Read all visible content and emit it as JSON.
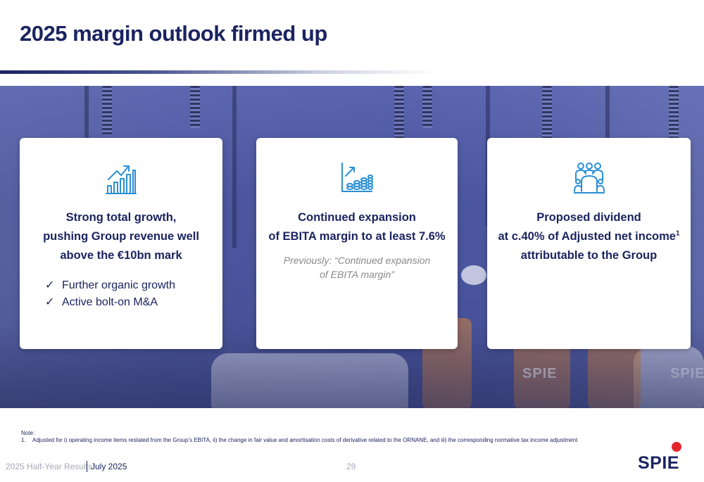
{
  "slide": {
    "title": "2025 margin outlook firmed up"
  },
  "cards": [
    {
      "icon": "growth-chart-icon",
      "heading": "Strong total growth, pushing Group revenue well above the €10bn mark",
      "bullets": [
        "Further organic growth",
        "Active bolt-on M&A"
      ],
      "bullet_marker": "✓"
    },
    {
      "icon": "margin-coins-chart-icon",
      "heading_line1": "Continued expansion",
      "heading_line2": "of EBITA margin to at least 7.6%",
      "note_line1": "Previously: “Continued expansion",
      "note_line2": "of EBITA margin”"
    },
    {
      "icon": "shareholders-group-icon",
      "heading_line1": "Proposed dividend",
      "heading_line2a": "at c.40% of Adjusted net income",
      "heading_sup": "1",
      "heading_line3": "attributable to the Group"
    }
  ],
  "note": {
    "label": "Note:",
    "number": "1.",
    "text": "Adjusted for i) operating income items restated from the Group’s EBITA, ii) the change in fair value and amortisation costs of derivative related to the ORNANE, and iii) the corresponding normative tax income adjustment"
  },
  "footer": {
    "presentation": "2025 Half-Year Results",
    "date": "July 2025",
    "page": "29",
    "logo_text": "SPIE"
  },
  "colors": {
    "navy": "#1b2460",
    "icon_blue": "#2a8fd6",
    "logo_red": "#e3262d"
  }
}
